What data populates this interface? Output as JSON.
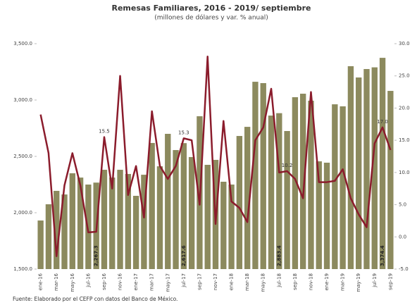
{
  "chart_data": {
    "type": "combo",
    "title": "Remesas Familiares, 2016 - 2019/ septiembre",
    "subtitle": "(millones de dólares y var. % anual)",
    "source": "Fuente: Elaborado por el CEFP con datos del Banco de México.",
    "categories": [
      "ene-16",
      null,
      "mar-16",
      null,
      "may-16",
      null,
      "jul-16",
      null,
      "sep-16",
      null,
      "nov-16",
      null,
      "ene-17",
      null,
      "mar-17",
      null,
      "may-17",
      null,
      "jul-17",
      null,
      "sep-17",
      null,
      "nov-17",
      null,
      "ene-18",
      null,
      "mar-18",
      null,
      "may-18",
      null,
      "jul-18",
      null,
      "sep-18",
      null,
      "nov-18",
      null,
      "ene-19",
      null,
      "mar-19",
      null,
      "may-19",
      null,
      "jul-19",
      null,
      "sep-19"
    ],
    "series": [
      {
        "type": "bar",
        "color": "#8c8a5e",
        "values": [
          1931,
          2075,
          2194,
          2162,
          2350,
          2312,
          2250,
          2267.3,
          2381,
          2312,
          2381,
          2344,
          2150,
          2337,
          2619,
          2412,
          2700,
          2556,
          2617.6,
          2494,
          2856,
          2425,
          2469,
          2275,
          2250,
          2681,
          2762,
          3162,
          3150,
          2862,
          2883.4,
          2725,
          3025,
          3056,
          2994,
          2456,
          2444,
          2962,
          2944,
          3300,
          3200,
          3275,
          3290,
          3374.4,
          3081
        ],
        "value_labels": [
          null,
          null,
          null,
          null,
          null,
          null,
          null,
          "2,267.3",
          null,
          null,
          null,
          null,
          null,
          null,
          null,
          null,
          null,
          null,
          "2,617.6",
          null,
          null,
          null,
          null,
          null,
          null,
          null,
          null,
          null,
          null,
          null,
          "2,883.4",
          null,
          null,
          null,
          null,
          null,
          null,
          null,
          null,
          null,
          null,
          null,
          null,
          "3,374.4",
          null
        ]
      },
      {
        "type": "line",
        "color": "#8b1c2c",
        "axis": "y2",
        "values": [
          19,
          13,
          -3,
          8,
          13,
          8,
          0.7,
          0.8,
          15.5,
          7.5,
          25,
          6.5,
          11,
          3,
          19.5,
          11,
          9,
          11,
          15.3,
          15,
          5,
          28,
          2,
          18,
          5.5,
          4.5,
          2.3,
          15,
          17,
          23,
          10,
          10.2,
          9,
          6,
          22.5,
          8.5,
          8.5,
          8.7,
          10.5,
          6,
          3.5,
          1.5,
          14.5,
          17,
          13.5
        ],
        "value_labels": [
          null,
          null,
          null,
          null,
          null,
          null,
          null,
          null,
          "15.5",
          null,
          null,
          null,
          null,
          null,
          null,
          null,
          null,
          null,
          "15.3",
          null,
          null,
          null,
          null,
          null,
          null,
          null,
          null,
          null,
          null,
          null,
          null,
          "10.2",
          null,
          null,
          null,
          null,
          null,
          null,
          null,
          null,
          null,
          null,
          null,
          "17.0",
          null
        ]
      }
    ],
    "ylim": [
      1500,
      3500
    ],
    "yticks": [
      {
        "value": 1500,
        "label": "1,500.0"
      },
      {
        "value": 2000,
        "label": "2,000.0"
      },
      {
        "value": 2500,
        "label": "2,500.0"
      },
      {
        "value": 3000,
        "label": "3,000.0"
      },
      {
        "value": 3500,
        "label": "3,500.0"
      }
    ],
    "y2lim": [
      -5,
      30
    ],
    "y2ticks": [
      {
        "value": -5,
        "label": "-5.0"
      },
      {
        "value": 0,
        "label": "0.0"
      },
      {
        "value": 5,
        "label": "5.0"
      },
      {
        "value": 10,
        "label": "10.0"
      },
      {
        "value": 15,
        "label": "15.0"
      },
      {
        "value": 20,
        "label": "20.0"
      },
      {
        "value": 25,
        "label": "25.0"
      },
      {
        "value": 30,
        "label": "30.0"
      }
    ]
  }
}
